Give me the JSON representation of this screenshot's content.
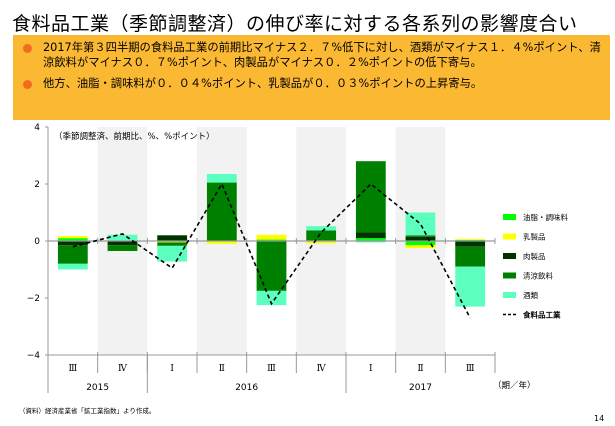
{
  "page": {
    "title": "食料品工業（季節調整済）の伸び率に対する各系列の影響度合い",
    "bullets": [
      "2017年第３四半期の食料品工業の前期比マイナス２．７%低下に対し、酒類がマイナス１．４%ポイント、清涼飲料がマイナス０．７%ポイント、肉製品がマイナス０．２%ポイントの低下寄与。",
      "他方、油脂・調味料が０．０４%ポイント、乳製品が０．０３%ポイントの上昇寄与。"
    ],
    "source": "（資料）経済産業省「鉱工業指数」より作成。",
    "page_number": "14"
  },
  "colors": {
    "summary_bg": "#fbb933",
    "bullet": "#f26b21",
    "shade": "#f2f2f2"
  },
  "chart_data": {
    "type": "bar",
    "stacked": true,
    "unit_note": "（季節調整済、前期比、%、%ポイント）",
    "x_axis_unit": "（期／年）",
    "categories": [
      "Ⅲ",
      "Ⅳ",
      "Ⅰ",
      "Ⅱ",
      "Ⅲ",
      "Ⅳ",
      "Ⅰ",
      "Ⅱ",
      "Ⅲ"
    ],
    "year_groups": [
      {
        "label": "2015",
        "count": 2
      },
      {
        "label": "2016",
        "count": 4
      },
      {
        "label": "2017",
        "count": 3
      }
    ],
    "ylim": [
      -4,
      4
    ],
    "yticks": [
      4,
      2,
      0,
      -2,
      -4
    ],
    "ytick_labels": [
      "4",
      "2",
      "0",
      "−2",
      "−4"
    ],
    "series": [
      {
        "name": "油脂・調味料",
        "color": "#00ff00",
        "values": [
          0.1,
          0.02,
          -0.03,
          0.0,
          0.05,
          0.02,
          0.1,
          -0.15,
          0.04
        ]
      },
      {
        "name": "乳製品",
        "color": "#ffff00",
        "values": [
          0.07,
          0.0,
          -0.02,
          -0.1,
          0.17,
          -0.08,
          0.0,
          -0.1,
          0.03
        ]
      },
      {
        "name": "肉製品",
        "color": "#003300",
        "values": [
          -0.15,
          -0.15,
          0.2,
          0.0,
          0.0,
          0.0,
          0.2,
          0.15,
          -0.2
        ]
      },
      {
        "name": "清涼飲料",
        "color": "#008000",
        "values": [
          -0.65,
          -0.2,
          -0.12,
          2.05,
          -1.75,
          0.35,
          2.5,
          0.05,
          -0.7
        ]
      },
      {
        "name": "酒類",
        "color": "#5cffbe",
        "values": [
          -0.2,
          0.2,
          -0.55,
          0.3,
          -0.5,
          0.15,
          -0.05,
          0.8,
          -1.4
        ]
      }
    ],
    "line": {
      "name": "食料品工業",
      "color": "#000000",
      "values": [
        -0.2,
        0.25,
        -0.95,
        2.0,
        -2.2,
        0.3,
        2.0,
        0.6,
        -2.7
      ]
    }
  }
}
